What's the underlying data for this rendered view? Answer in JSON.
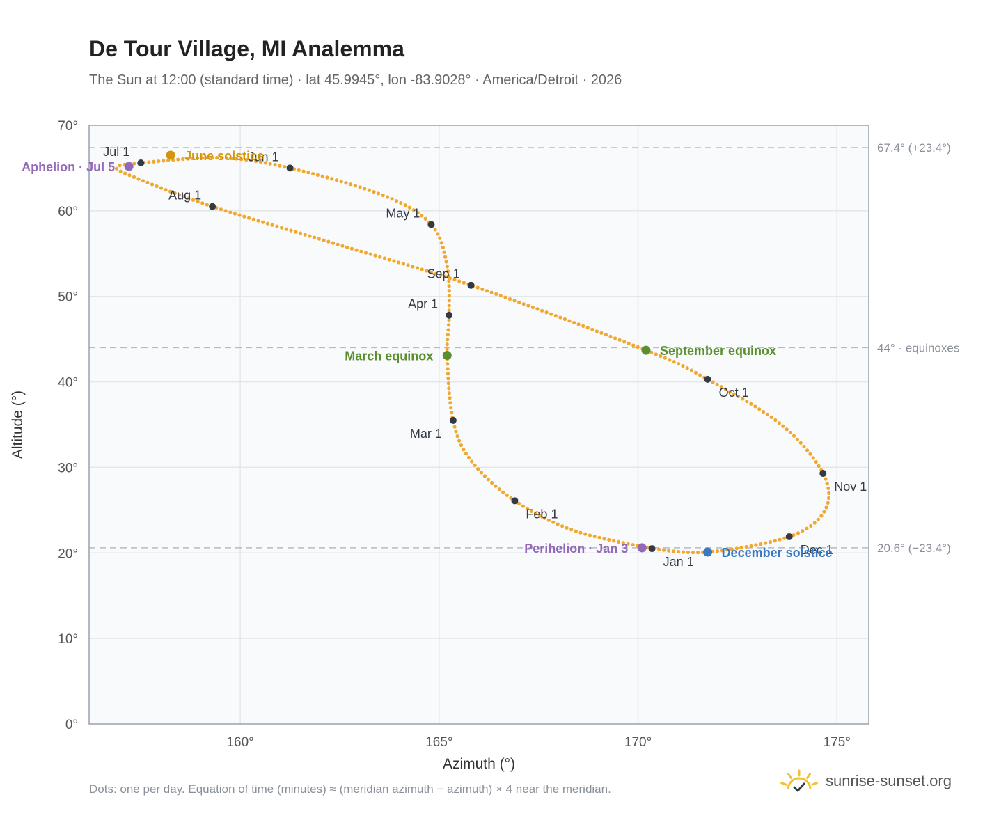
{
  "header": {
    "title": "De Tour Village, MI Analemma",
    "subtitle": "The Sun at 12:00 (standard time) · lat 45.9945°, lon -83.9028° · America/Detroit · 2026"
  },
  "footer": {
    "note": "Dots: one per day. Equation of time (minutes) ≈ (meridian azimuth − azimuth) × 4 near the meridian.",
    "brand": "sunrise-sunset.org"
  },
  "colors": {
    "curve": "#f0a830",
    "month_dot": "#333a44",
    "solstice_june": "#d4950a",
    "solstice_december": "#3a78c2",
    "equinox": "#5a8f2e",
    "apsis": "#9468b8",
    "reference_line": "#b4bcc4",
    "plot_bg": "#f8fafc",
    "frame": "#98a2ae",
    "brand_sun": "#f2c230"
  },
  "chart_data": {
    "type": "scatter",
    "title": "De Tour Village, MI Analemma",
    "xlabel": "Azimuth (°)",
    "ylabel": "Altitude (°)",
    "xlim": [
      156.2,
      175.8
    ],
    "ylim": [
      0,
      70
    ],
    "x_ticks": [
      {
        "value": 160,
        "label": "160°"
      },
      {
        "value": 165,
        "label": "165°"
      },
      {
        "value": 170,
        "label": "170°"
      },
      {
        "value": 175,
        "label": "175°"
      }
    ],
    "y_ticks": [
      {
        "value": 0,
        "label": "0°"
      },
      {
        "value": 10,
        "label": "10°"
      },
      {
        "value": 20,
        "label": "20°"
      },
      {
        "value": 30,
        "label": "30°"
      },
      {
        "value": 40,
        "label": "40°"
      },
      {
        "value": 50,
        "label": "50°"
      },
      {
        "value": 60,
        "label": "60°"
      },
      {
        "value": 70,
        "label": "70°"
      }
    ],
    "grid": true,
    "reference_lines": [
      {
        "y": 67.4,
        "label": "67.4° (+23.4°)"
      },
      {
        "y": 44.0,
        "label": "44° · equinoxes"
      },
      {
        "y": 20.6,
        "label": "20.6° (−23.4°)"
      }
    ],
    "months": [
      {
        "label": "Jan 1",
        "x": 170.35,
        "y": 20.5,
        "anchor": "bottom-right"
      },
      {
        "label": "Feb 1",
        "x": 166.9,
        "y": 26.1,
        "anchor": "bottom-right"
      },
      {
        "label": "Mar 1",
        "x": 165.35,
        "y": 35.5,
        "anchor": "left-below"
      },
      {
        "label": "Apr 1",
        "x": 165.25,
        "y": 47.8,
        "anchor": "left-above"
      },
      {
        "label": "May 1",
        "x": 164.8,
        "y": 58.4,
        "anchor": "left-above"
      },
      {
        "label": "Jun 1",
        "x": 161.25,
        "y": 65.0,
        "anchor": "left-above"
      },
      {
        "label": "Jul 1",
        "x": 157.5,
        "y": 65.6,
        "anchor": "left-above"
      },
      {
        "label": "Aug 1",
        "x": 159.3,
        "y": 60.5,
        "anchor": "left-above"
      },
      {
        "label": "Sep 1",
        "x": 165.8,
        "y": 51.3,
        "anchor": "left-above"
      },
      {
        "label": "Oct 1",
        "x": 171.75,
        "y": 40.3,
        "anchor": "bottom-right"
      },
      {
        "label": "Nov 1",
        "x": 174.65,
        "y": 29.3,
        "anchor": "bottom-right"
      },
      {
        "label": "Dec 1",
        "x": 173.8,
        "y": 21.9,
        "anchor": "bottom-right"
      }
    ],
    "events": [
      {
        "label": "June solstice",
        "x": 158.25,
        "y": 66.5,
        "kind": "solstice_june",
        "side": "right"
      },
      {
        "label": "December solstice",
        "x": 171.75,
        "y": 20.1,
        "kind": "solstice_december",
        "side": "right"
      },
      {
        "label": "March equinox",
        "x": 165.2,
        "y": 43.1,
        "kind": "equinox",
        "side": "left"
      },
      {
        "label": "September equinox",
        "x": 170.2,
        "y": 43.7,
        "kind": "equinox",
        "side": "right"
      },
      {
        "label": "Aphelion · Jul 5",
        "x": 157.2,
        "y": 65.2,
        "kind": "apsis",
        "side": "left"
      },
      {
        "label": "Perihelion · Jan 3",
        "x": 170.1,
        "y": 20.6,
        "kind": "apsis",
        "side": "left"
      }
    ],
    "daily_path": [
      [
        170.35,
        20.5
      ],
      [
        168.4,
        22.6
      ],
      [
        166.9,
        26.1
      ],
      [
        165.8,
        30.8
      ],
      [
        165.35,
        35.5
      ],
      [
        165.2,
        43.1
      ],
      [
        165.25,
        47.8
      ],
      [
        165.2,
        53.5
      ],
      [
        164.8,
        58.4
      ],
      [
        163.6,
        61.8
      ],
      [
        161.25,
        65.0
      ],
      [
        159.5,
        66.2
      ],
      [
        157.5,
        65.6
      ],
      [
        156.9,
        65.1
      ],
      [
        157.3,
        64.0
      ],
      [
        159.3,
        60.5
      ],
      [
        162.5,
        56.0
      ],
      [
        165.8,
        51.3
      ],
      [
        170.2,
        43.7
      ],
      [
        171.75,
        40.3
      ],
      [
        173.6,
        35.0
      ],
      [
        174.65,
        29.3
      ],
      [
        174.7,
        25.0
      ],
      [
        173.8,
        21.9
      ],
      [
        171.75,
        20.1
      ],
      [
        170.35,
        20.5
      ]
    ]
  }
}
